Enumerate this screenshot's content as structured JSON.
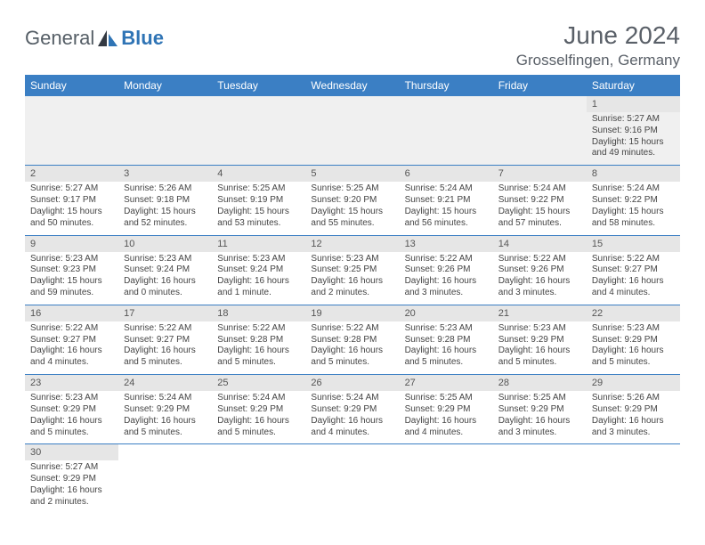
{
  "logo": {
    "general": "General",
    "blue": "Blue"
  },
  "title": "June 2024",
  "location": "Grosselfingen, Germany",
  "colors": {
    "header_bg": "#3b7fc4",
    "header_fg": "#ffffff",
    "date_bg": "#e6e6e6",
    "row_divider": "#3b7fc4",
    "text": "#444444",
    "title_color": "#5a6068"
  },
  "layout": {
    "columns": 7,
    "rows": 6,
    "start_day_index": 6
  },
  "weekdays": [
    "Sunday",
    "Monday",
    "Tuesday",
    "Wednesday",
    "Thursday",
    "Friday",
    "Saturday"
  ],
  "days": [
    {
      "n": 1,
      "sr": "5:27 AM",
      "ss": "9:16 PM",
      "dl": "15 hours and 49 minutes."
    },
    {
      "n": 2,
      "sr": "5:27 AM",
      "ss": "9:17 PM",
      "dl": "15 hours and 50 minutes."
    },
    {
      "n": 3,
      "sr": "5:26 AM",
      "ss": "9:18 PM",
      "dl": "15 hours and 52 minutes."
    },
    {
      "n": 4,
      "sr": "5:25 AM",
      "ss": "9:19 PM",
      "dl": "15 hours and 53 minutes."
    },
    {
      "n": 5,
      "sr": "5:25 AM",
      "ss": "9:20 PM",
      "dl": "15 hours and 55 minutes."
    },
    {
      "n": 6,
      "sr": "5:24 AM",
      "ss": "9:21 PM",
      "dl": "15 hours and 56 minutes."
    },
    {
      "n": 7,
      "sr": "5:24 AM",
      "ss": "9:22 PM",
      "dl": "15 hours and 57 minutes."
    },
    {
      "n": 8,
      "sr": "5:24 AM",
      "ss": "9:22 PM",
      "dl": "15 hours and 58 minutes."
    },
    {
      "n": 9,
      "sr": "5:23 AM",
      "ss": "9:23 PM",
      "dl": "15 hours and 59 minutes."
    },
    {
      "n": 10,
      "sr": "5:23 AM",
      "ss": "9:24 PM",
      "dl": "16 hours and 0 minutes."
    },
    {
      "n": 11,
      "sr": "5:23 AM",
      "ss": "9:24 PM",
      "dl": "16 hours and 1 minute."
    },
    {
      "n": 12,
      "sr": "5:23 AM",
      "ss": "9:25 PM",
      "dl": "16 hours and 2 minutes."
    },
    {
      "n": 13,
      "sr": "5:22 AM",
      "ss": "9:26 PM",
      "dl": "16 hours and 3 minutes."
    },
    {
      "n": 14,
      "sr": "5:22 AM",
      "ss": "9:26 PM",
      "dl": "16 hours and 3 minutes."
    },
    {
      "n": 15,
      "sr": "5:22 AM",
      "ss": "9:27 PM",
      "dl": "16 hours and 4 minutes."
    },
    {
      "n": 16,
      "sr": "5:22 AM",
      "ss": "9:27 PM",
      "dl": "16 hours and 4 minutes."
    },
    {
      "n": 17,
      "sr": "5:22 AM",
      "ss": "9:27 PM",
      "dl": "16 hours and 5 minutes."
    },
    {
      "n": 18,
      "sr": "5:22 AM",
      "ss": "9:28 PM",
      "dl": "16 hours and 5 minutes."
    },
    {
      "n": 19,
      "sr": "5:22 AM",
      "ss": "9:28 PM",
      "dl": "16 hours and 5 minutes."
    },
    {
      "n": 20,
      "sr": "5:23 AM",
      "ss": "9:28 PM",
      "dl": "16 hours and 5 minutes."
    },
    {
      "n": 21,
      "sr": "5:23 AM",
      "ss": "9:29 PM",
      "dl": "16 hours and 5 minutes."
    },
    {
      "n": 22,
      "sr": "5:23 AM",
      "ss": "9:29 PM",
      "dl": "16 hours and 5 minutes."
    },
    {
      "n": 23,
      "sr": "5:23 AM",
      "ss": "9:29 PM",
      "dl": "16 hours and 5 minutes."
    },
    {
      "n": 24,
      "sr": "5:24 AM",
      "ss": "9:29 PM",
      "dl": "16 hours and 5 minutes."
    },
    {
      "n": 25,
      "sr": "5:24 AM",
      "ss": "9:29 PM",
      "dl": "16 hours and 5 minutes."
    },
    {
      "n": 26,
      "sr": "5:24 AM",
      "ss": "9:29 PM",
      "dl": "16 hours and 4 minutes."
    },
    {
      "n": 27,
      "sr": "5:25 AM",
      "ss": "9:29 PM",
      "dl": "16 hours and 4 minutes."
    },
    {
      "n": 28,
      "sr": "5:25 AM",
      "ss": "9:29 PM",
      "dl": "16 hours and 3 minutes."
    },
    {
      "n": 29,
      "sr": "5:26 AM",
      "ss": "9:29 PM",
      "dl": "16 hours and 3 minutes."
    },
    {
      "n": 30,
      "sr": "5:27 AM",
      "ss": "9:29 PM",
      "dl": "16 hours and 2 minutes."
    }
  ],
  "labels": {
    "sunrise": "Sunrise:",
    "sunset": "Sunset:",
    "daylight": "Daylight:"
  }
}
